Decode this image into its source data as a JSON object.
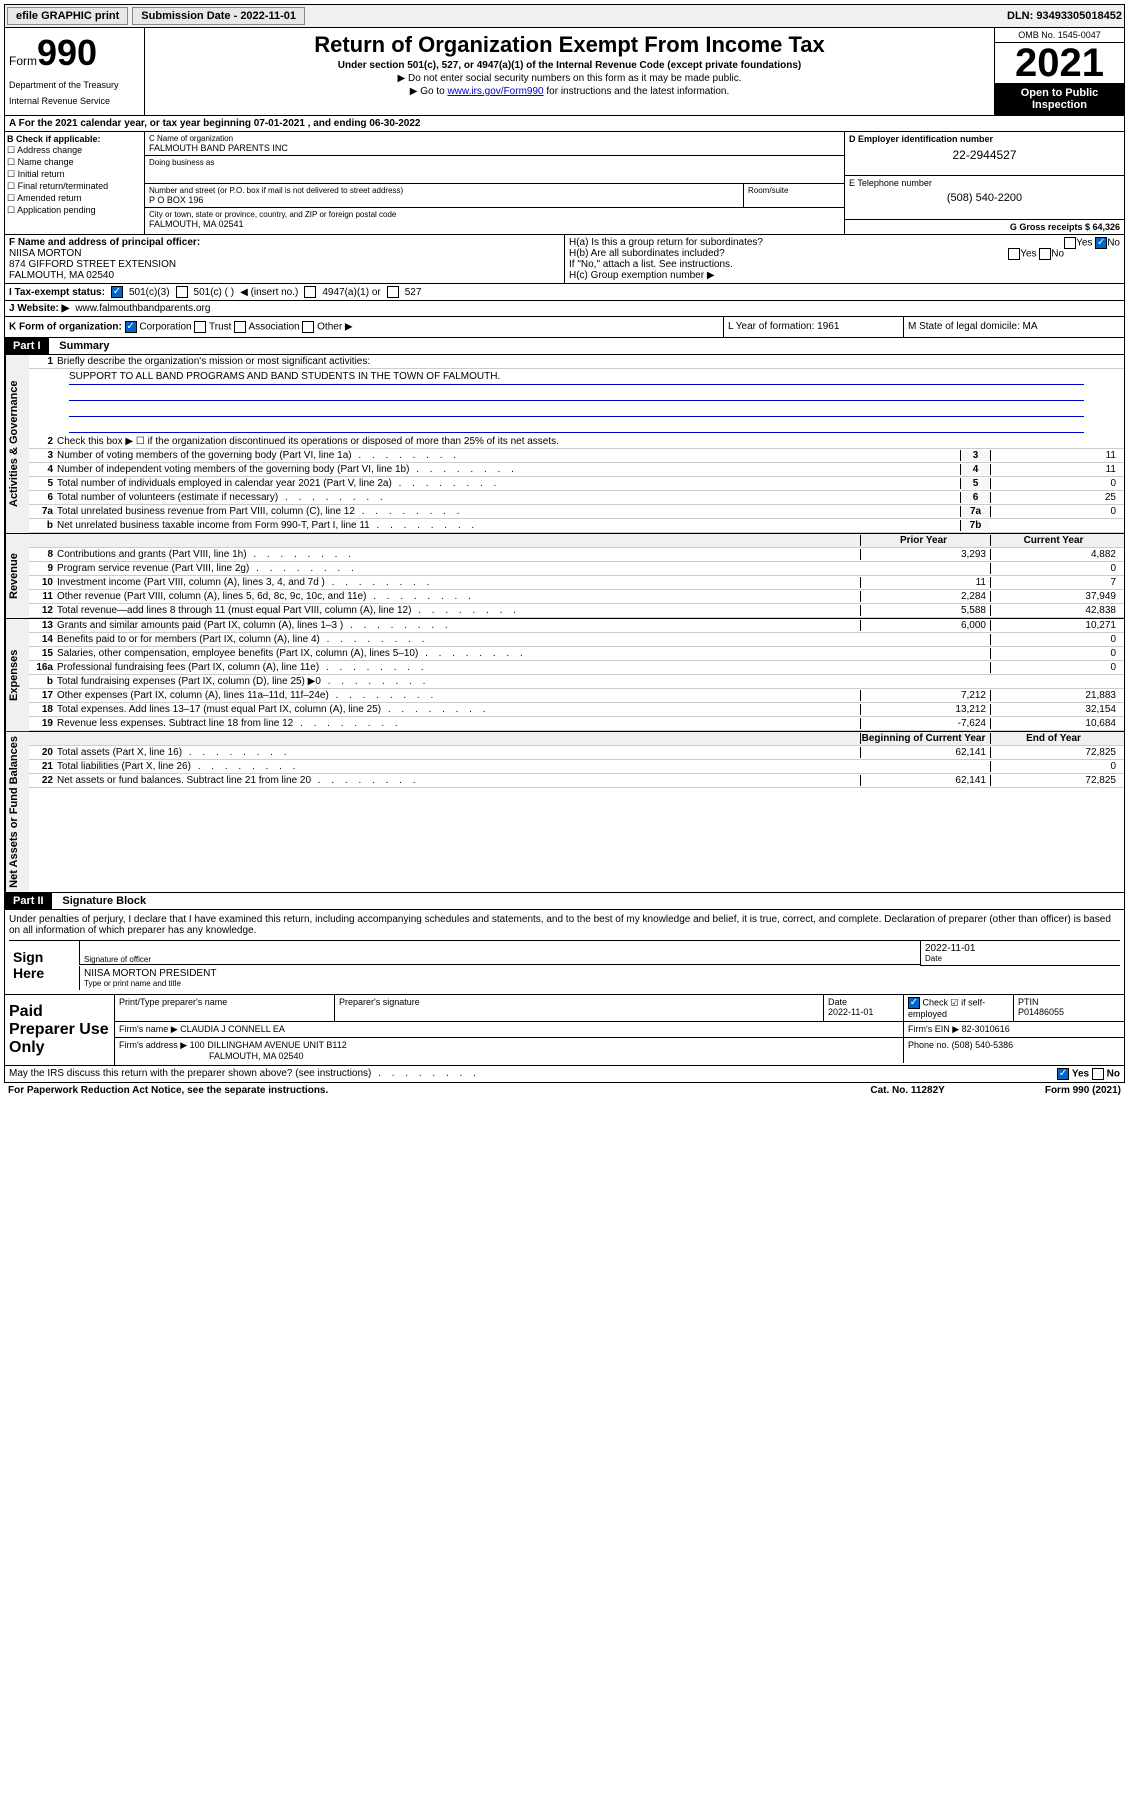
{
  "topbar": {
    "efile": "efile GRAPHIC print",
    "submission_label": "Submission Date - 2022-11-01",
    "dln_label": "DLN: 93493305018452"
  },
  "header": {
    "form_prefix": "Form",
    "form_number": "990",
    "dept1": "Department of the Treasury",
    "dept2": "Internal Revenue Service",
    "title": "Return of Organization Exempt From Income Tax",
    "subtitle": "Under section 501(c), 527, or 4947(a)(1) of the Internal Revenue Code (except private foundations)",
    "note1": "▶ Do not enter social security numbers on this form as it may be made public.",
    "note2_pre": "▶ Go to ",
    "note2_link": "www.irs.gov/Form990",
    "note2_post": " for instructions and the latest information.",
    "omb": "OMB No. 1545-0047",
    "taxyear": "2021",
    "inspection": "Open to Public Inspection"
  },
  "row_a": {
    "text": "A For the 2021 calendar year, or tax year beginning 07-01-2021   , and ending 06-30-2022"
  },
  "col_b": {
    "label": "B Check if applicable:",
    "opts": [
      "Address change",
      "Name change",
      "Initial return",
      "Final return/terminated",
      "Amended return",
      "Application pending"
    ]
  },
  "col_c": {
    "name_label": "C Name of organization",
    "name": "FALMOUTH BAND PARENTS INC",
    "dba_label": "Doing business as",
    "dba": "",
    "addr_label": "Number and street (or P.O. box if mail is not delivered to street address)",
    "room_label": "Room/suite",
    "addr": "P O BOX 196",
    "city_label": "City or town, state or province, country, and ZIP or foreign postal code",
    "city": "FALMOUTH, MA  02541"
  },
  "col_d": {
    "ein_label": "D Employer identification number",
    "ein": "22-2944527",
    "phone_label": "E Telephone number",
    "phone": "(508) 540-2200",
    "gross_label": "G Gross receipts $ 64,326"
  },
  "row_f": {
    "label": "F Name and address of principal officer:",
    "name": "NIISA MORTON",
    "addr1": "874 GIFFORD STREET EXTENSION",
    "addr2": "FALMOUTH, MA  02540"
  },
  "row_h": {
    "ha": "H(a)  Is this a group return for subordinates?",
    "hb": "H(b)  Are all subordinates included?",
    "hb_note": "If \"No,\" attach a list. See instructions.",
    "hc": "H(c)  Group exemption number ▶",
    "yes": "Yes",
    "no": "No"
  },
  "row_i": {
    "label": "I    Tax-exempt status:",
    "opt1": "501(c)(3)",
    "opt2": "501(c) (  )",
    "opt2_note": "◀ (insert no.)",
    "opt3": "4947(a)(1) or",
    "opt4": "527"
  },
  "row_j": {
    "label": "J   Website: ▶",
    "value": "www.falmouthbandparents.org"
  },
  "row_k": {
    "label": "K Form of organization:",
    "opts": [
      "Corporation",
      "Trust",
      "Association",
      "Other ▶"
    ]
  },
  "row_l": {
    "label": "L Year of formation: 1961"
  },
  "row_m": {
    "label": "M State of legal domicile: MA"
  },
  "parti": {
    "header": "Part I",
    "title": "Summary",
    "line1_label": "Briefly describe the organization's mission or most significant activities:",
    "mission": "SUPPORT TO ALL BAND PROGRAMS AND BAND STUDENTS IN THE TOWN OF FALMOUTH.",
    "line2": "Check this box ▶ ☐  if the organization discontinued its operations or disposed of more than 25% of its net assets.",
    "header_prior": "Prior Year",
    "header_current": "Current Year",
    "header_begin": "Beginning of Current Year",
    "header_end": "End of Year",
    "lines_gov": [
      {
        "n": "3",
        "d": "Number of voting members of the governing body (Part VI, line 1a)",
        "box": "3",
        "v": "11"
      },
      {
        "n": "4",
        "d": "Number of independent voting members of the governing body (Part VI, line 1b)",
        "box": "4",
        "v": "11"
      },
      {
        "n": "5",
        "d": "Total number of individuals employed in calendar year 2021 (Part V, line 2a)",
        "box": "5",
        "v": "0"
      },
      {
        "n": "6",
        "d": "Total number of volunteers (estimate if necessary)",
        "box": "6",
        "v": "25"
      },
      {
        "n": "7a",
        "d": "Total unrelated business revenue from Part VIII, column (C), line 12",
        "box": "7a",
        "v": "0"
      },
      {
        "n": "b",
        "d": "Net unrelated business taxable income from Form 990-T, Part I, line 11",
        "box": "7b",
        "v": ""
      }
    ],
    "lines_rev": [
      {
        "n": "8",
        "d": "Contributions and grants (Part VIII, line 1h)",
        "p": "3,293",
        "c": "4,882"
      },
      {
        "n": "9",
        "d": "Program service revenue (Part VIII, line 2g)",
        "p": "",
        "c": "0"
      },
      {
        "n": "10",
        "d": "Investment income (Part VIII, column (A), lines 3, 4, and 7d )",
        "p": "11",
        "c": "7"
      },
      {
        "n": "11",
        "d": "Other revenue (Part VIII, column (A), lines 5, 6d, 8c, 9c, 10c, and 11e)",
        "p": "2,284",
        "c": "37,949"
      },
      {
        "n": "12",
        "d": "Total revenue—add lines 8 through 11 (must equal Part VIII, column (A), line 12)",
        "p": "5,588",
        "c": "42,838"
      }
    ],
    "lines_exp": [
      {
        "n": "13",
        "d": "Grants and similar amounts paid (Part IX, column (A), lines 1–3 )",
        "p": "6,000",
        "c": "10,271"
      },
      {
        "n": "14",
        "d": "Benefits paid to or for members (Part IX, column (A), line 4)",
        "p": "",
        "c": "0"
      },
      {
        "n": "15",
        "d": "Salaries, other compensation, employee benefits (Part IX, column (A), lines 5–10)",
        "p": "",
        "c": "0"
      },
      {
        "n": "16a",
        "d": "Professional fundraising fees (Part IX, column (A), line 11e)",
        "p": "",
        "c": "0"
      },
      {
        "n": "b",
        "d": "Total fundraising expenses (Part IX, column (D), line 25) ▶0",
        "p": "__SHADED__",
        "c": "__SHADED__"
      },
      {
        "n": "17",
        "d": "Other expenses (Part IX, column (A), lines 11a–11d, 11f–24e)",
        "p": "7,212",
        "c": "21,883"
      },
      {
        "n": "18",
        "d": "Total expenses. Add lines 13–17 (must equal Part IX, column (A), line 25)",
        "p": "13,212",
        "c": "32,154"
      },
      {
        "n": "19",
        "d": "Revenue less expenses. Subtract line 18 from line 12",
        "p": "-7,624",
        "c": "10,684"
      }
    ],
    "lines_net": [
      {
        "n": "20",
        "d": "Total assets (Part X, line 16)",
        "p": "62,141",
        "c": "72,825"
      },
      {
        "n": "21",
        "d": "Total liabilities (Part X, line 26)",
        "p": "",
        "c": "0"
      },
      {
        "n": "22",
        "d": "Net assets or fund balances. Subtract line 21 from line 20",
        "p": "62,141",
        "c": "72,825"
      }
    ],
    "section_labels": {
      "gov": "Activities & Governance",
      "rev": "Revenue",
      "exp": "Expenses",
      "net": "Net Assets or Fund Balances"
    }
  },
  "partii": {
    "header": "Part II",
    "title": "Signature Block",
    "decl": "Under penalties of perjury, I declare that I have examined this return, including accompanying schedules and statements, and to the best of my knowledge and belief, it is true, correct, and complete. Declaration of preparer (other than officer) is based on all information of which preparer has any knowledge.",
    "sign_here": "Sign Here",
    "sig_officer": "Signature of officer",
    "sig_date_val": "2022-11-01",
    "sig_date": "Date",
    "sig_name": "NIISA MORTON PRESIDENT",
    "sig_name_label": "Type or print name and title",
    "paid": "Paid Preparer Use Only",
    "prep_name_label": "Print/Type preparer's name",
    "prep_sig_label": "Preparer's signature",
    "prep_date_label": "Date",
    "prep_date": "2022-11-01",
    "prep_self": "Check ☑ if self-employed",
    "ptin_label": "PTIN",
    "ptin": "P01486055",
    "firm_name_label": "Firm's name    ▶",
    "firm_name": "CLAUDIA J CONNELL EA",
    "firm_ein_label": "Firm's EIN ▶",
    "firm_ein": "82-3010616",
    "firm_addr_label": "Firm's address ▶",
    "firm_addr1": "100 DILLINGHAM AVENUE UNIT B112",
    "firm_addr2": "FALMOUTH, MA  02540",
    "firm_phone_label": "Phone no.",
    "firm_phone": "(508) 540-5386"
  },
  "footer": {
    "discuss": "May the IRS discuss this return with the preparer shown above? (see instructions)",
    "yes": "Yes",
    "no": "No",
    "paperwork": "For Paperwork Reduction Act Notice, see the separate instructions.",
    "cat": "Cat. No. 11282Y",
    "form": "Form 990 (2021)"
  }
}
